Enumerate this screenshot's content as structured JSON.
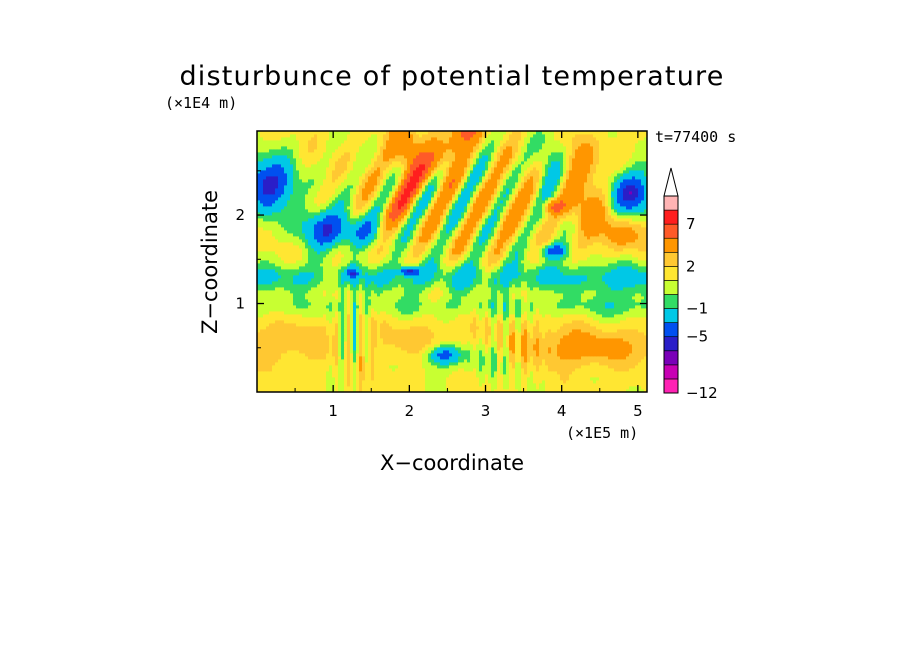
{
  "chart_data": {
    "type": "heatmap",
    "title": "disturbunce of potential temperature",
    "time_label": "t=77400 s",
    "xlabel": "X−coordinate",
    "ylabel": "Z−coordinate",
    "x_unit": "(×1E5 m)",
    "y_unit": "(×1E4 m)",
    "xlim": [
      0,
      5.12
    ],
    "ylim": [
      0,
      2.95
    ],
    "x_ticks": [
      1,
      2,
      3,
      4,
      5
    ],
    "x_tick_labels": [
      "1",
      "2",
      "3",
      "4",
      "5"
    ],
    "y_ticks": [
      1,
      2
    ],
    "y_tick_labels": [
      "1",
      "2"
    ],
    "colorbar": {
      "levels": [
        -12,
        -10,
        -8,
        -6,
        -5,
        -3,
        -1,
        0,
        1,
        2,
        3,
        5,
        7,
        9,
        11
      ],
      "colors": [
        "#ff22b4",
        "#c800b4",
        "#7a00b8",
        "#2a1ec8",
        "#0050f0",
        "#00c8e6",
        "#32dc64",
        "#c8ff32",
        "#ffe632",
        "#ffc832",
        "#ff9600",
        "#ff5a28",
        "#ff1e1e",
        "#ffb4b4"
      ],
      "labeled_levels": [
        7,
        2,
        -1,
        -5,
        -12
      ],
      "tick_labels": [
        "7",
        "2",
        "−1",
        "−5",
        "−12"
      ],
      "extend": "max"
    },
    "legend_position": "right"
  }
}
